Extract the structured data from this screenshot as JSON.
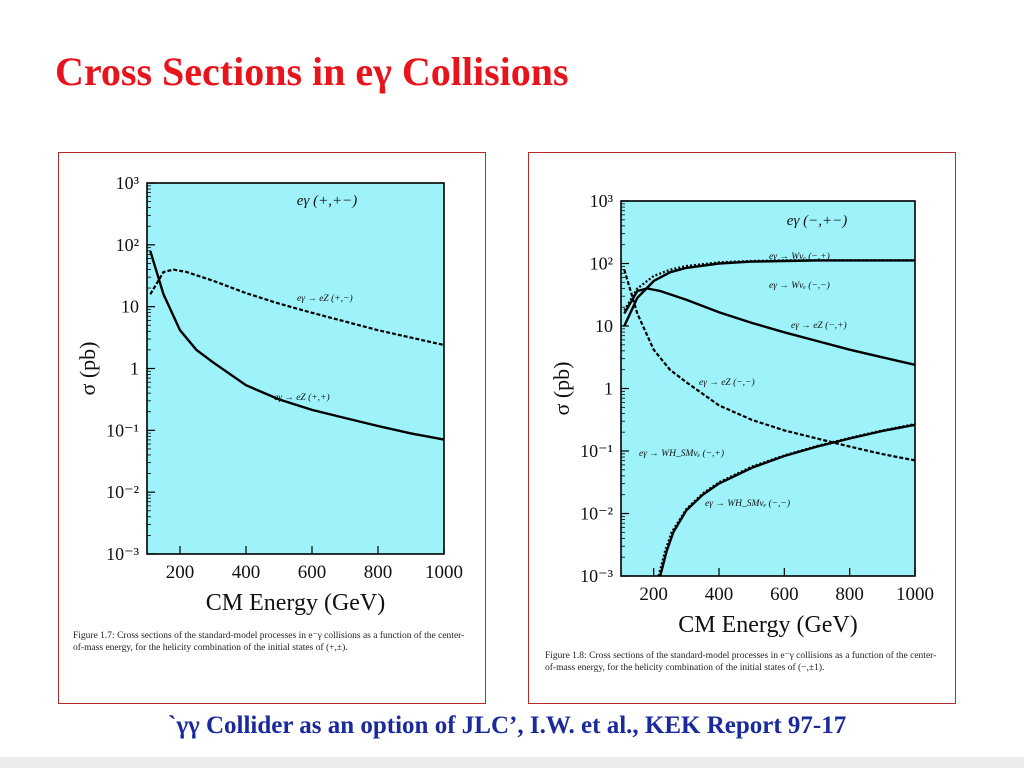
{
  "slide": {
    "title": "Cross Sections in eγ Collisions",
    "footer": "`γγ Collider as an option of JLC’, I.W. et al., KEK Report 97-17"
  },
  "colors": {
    "title": "#e8141c",
    "footer": "#1a2a9c",
    "plot_bg": "#9ef3fb",
    "border": "#b22a2a"
  },
  "chart_data": [
    {
      "type": "line",
      "panel": "left",
      "caption": "Figure 1.7: Cross sections of the standard-model processes in e⁻γ collisions as a function of the center-of-mass energy, for the helicity combination of the initial states of (+,±).",
      "xlabel": "CM Energy (GeV)",
      "ylabel": "σ (pb)",
      "x_ticks": [
        200,
        400,
        600,
        800,
        1000
      ],
      "y_ticks": [
        "10⁻³",
        "10⁻²",
        "10⁻¹",
        "1",
        "10",
        "10²",
        "10³"
      ],
      "xlim": [
        100,
        1000
      ],
      "ylim_log10": [
        -3,
        3
      ],
      "log_y": true,
      "header": "eγ (+,+−)",
      "series": [
        {
          "name": "eγ → eZ (+,−)",
          "style": "dashed",
          "x": [
            110,
            150,
            180,
            220,
            300,
            400,
            500,
            600,
            700,
            800,
            900,
            1000
          ],
          "log10_y": [
            1.2,
            1.56,
            1.6,
            1.56,
            1.42,
            1.22,
            1.05,
            0.9,
            0.76,
            0.62,
            0.5,
            0.38
          ]
        },
        {
          "name": "eγ → eZ (+,+)",
          "style": "solid",
          "x": [
            110,
            130,
            150,
            200,
            250,
            300,
            400,
            500,
            600,
            700,
            800,
            900,
            1000
          ],
          "log10_y": [
            1.9,
            1.55,
            1.2,
            0.62,
            0.3,
            0.1,
            -0.27,
            -0.5,
            -0.67,
            -0.8,
            -0.93,
            -1.05,
            -1.15
          ]
        }
      ]
    },
    {
      "type": "line",
      "panel": "right",
      "caption": "Figure 1.8: Cross sections of the standard-model processes in e⁻γ collisions as a function of the center-of-mass energy, for the helicity combination of the initial states of (−,±1).",
      "xlabel": "CM Energy (GeV)",
      "ylabel": "σ (pb)",
      "x_ticks": [
        200,
        400,
        600,
        800,
        1000
      ],
      "y_ticks": [
        "10⁻³",
        "10⁻²",
        "10⁻¹",
        "1",
        "10",
        "10²",
        "10³"
      ],
      "xlim": [
        100,
        1000
      ],
      "ylim_log10": [
        -3,
        3
      ],
      "log_y": true,
      "header": "eγ (−,+−)",
      "series": [
        {
          "name": "eγ → Wνₑ (−,+)",
          "style": "solid",
          "x": [
            110,
            150,
            200,
            250,
            300,
            400,
            500,
            600,
            700,
            800,
            900,
            1000
          ],
          "log10_y": [
            1.0,
            1.45,
            1.72,
            1.86,
            1.93,
            2.0,
            2.03,
            2.04,
            2.05,
            2.05,
            2.05,
            2.05
          ]
        },
        {
          "name": "eγ → Wνₑ (−,−)",
          "style": "dotted",
          "x": [
            110,
            150,
            200,
            250,
            300,
            400,
            500,
            600,
            700,
            800,
            900,
            1000
          ],
          "log10_y": [
            1.25,
            1.6,
            1.8,
            1.9,
            1.96,
            2.02,
            2.04,
            2.05,
            2.05,
            2.05,
            2.05,
            2.05
          ]
        },
        {
          "name": "eγ → eZ (−,+)",
          "style": "solid",
          "x": [
            110,
            150,
            180,
            220,
            300,
            400,
            500,
            600,
            700,
            800,
            900,
            1000
          ],
          "log10_y": [
            1.2,
            1.56,
            1.6,
            1.56,
            1.42,
            1.22,
            1.05,
            0.9,
            0.76,
            0.62,
            0.5,
            0.38
          ]
        },
        {
          "name": "eγ → eZ (−,−)",
          "style": "dashed",
          "x": [
            110,
            130,
            150,
            200,
            250,
            300,
            400,
            500,
            600,
            700,
            800,
            900,
            1000
          ],
          "log10_y": [
            1.9,
            1.55,
            1.2,
            0.62,
            0.3,
            0.1,
            -0.27,
            -0.5,
            -0.67,
            -0.8,
            -0.93,
            -1.05,
            -1.15
          ]
        },
        {
          "name": "eγ → WH_SMνₑ (−,+)",
          "style": "solid",
          "x": [
            220,
            240,
            260,
            300,
            350,
            400,
            500,
            600,
            700,
            800,
            900,
            1000
          ],
          "log10_y": [
            -3.0,
            -2.6,
            -2.3,
            -1.95,
            -1.7,
            -1.52,
            -1.27,
            -1.08,
            -0.93,
            -0.8,
            -0.68,
            -0.58
          ]
        },
        {
          "name": "eγ → WH_SMνₑ (−,−)",
          "style": "dotted",
          "x": [
            215,
            235,
            255,
            300,
            350,
            400,
            500,
            600,
            700,
            800,
            900,
            1000
          ],
          "log10_y": [
            -3.0,
            -2.6,
            -2.3,
            -1.93,
            -1.68,
            -1.5,
            -1.25,
            -1.07,
            -0.92,
            -0.79,
            -0.67,
            -0.57
          ]
        }
      ]
    }
  ]
}
